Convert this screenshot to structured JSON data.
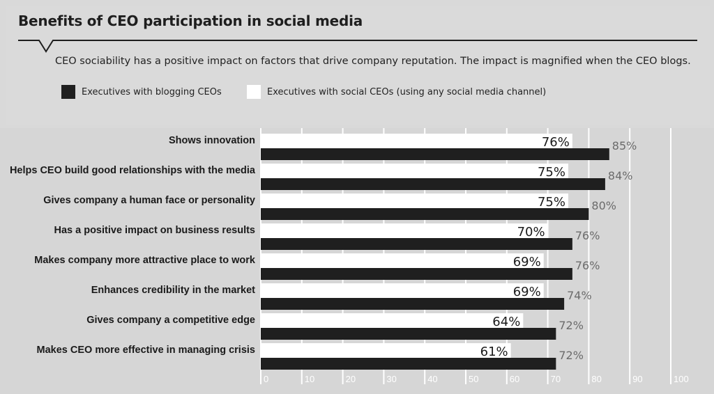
{
  "title": "Benefits of CEO participation in social media",
  "subtitle": "CEO sociability has a positive impact on factors that drive company reputation. The impact is magnified when the CEO blogs.",
  "legend": {
    "blogging": "Executives with blogging CEOs",
    "social": "Executives with social CEOs (using any social media channel)"
  },
  "colors": {
    "blogging": "#1f1f1f",
    "social": "#ffffff",
    "grid": "#ffffff",
    "background": "#d9d9d9"
  },
  "chart_data": {
    "type": "bar",
    "orientation": "horizontal",
    "categories": [
      "Shows innovation",
      "Helps CEO build good relationships with the media",
      "Gives company a human face or personality",
      "Has a positive impact on business results",
      "Makes company more attractive place to work",
      "Enhances credibility in the market",
      "Gives company a competitive edge",
      "Makes CEO more effective in managing crisis"
    ],
    "series": [
      {
        "name": "Executives with social CEOs (using any social media channel)",
        "values": [
          76,
          75,
          75,
          70,
          69,
          69,
          64,
          61
        ],
        "labels": [
          "76%",
          "75%",
          "75%",
          "70%",
          "69%",
          "69%",
          "64%",
          "61%"
        ]
      },
      {
        "name": "Executives with blogging CEOs",
        "values": [
          85,
          84,
          80,
          76,
          76,
          74,
          72,
          72
        ],
        "labels": [
          "85%",
          "84%",
          "80%",
          "76%",
          "76%",
          "74%",
          "72%",
          "72%"
        ]
      }
    ],
    "xlim": [
      0,
      100
    ],
    "xticks": [
      "0",
      "10",
      "20",
      "30",
      "40",
      "50",
      "60",
      "70",
      "80",
      "90",
      "100"
    ],
    "grid": true,
    "legend_position": "top-left"
  }
}
